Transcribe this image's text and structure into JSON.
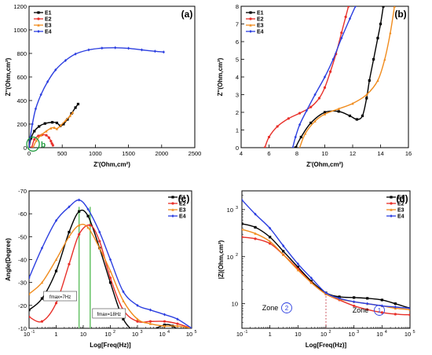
{
  "chart_data": [
    {
      "type": "line",
      "panel_label": "(a)",
      "xlabel": "Z'(Ohm,cm²)",
      "ylabel": "Z''(Ohm,cm²)",
      "xlim": [
        0,
        2500
      ],
      "ylim": [
        0,
        1200
      ],
      "xticks": [
        0,
        500,
        1000,
        1500,
        2000,
        2500
      ],
      "yticks": [
        0,
        200,
        400,
        600,
        800,
        1000,
        1200
      ],
      "legend_position": "top-left",
      "annotation": "b",
      "series": [
        {
          "name": "E1",
          "color": "#000000",
          "marker": "square",
          "x": [
            0,
            30,
            80,
            150,
            240,
            350,
            420,
            470,
            520,
            580,
            640,
            700,
            740
          ],
          "y": [
            0,
            80,
            140,
            180,
            205,
            215,
            210,
            185,
            200,
            240,
            290,
            340,
            370
          ]
        },
        {
          "name": "E2",
          "color": "#e8302a",
          "marker": "circle",
          "x": [
            40,
            80,
            140,
            200,
            260,
            300,
            330,
            345,
            360
          ],
          "y": [
            0,
            70,
            100,
            110,
            105,
            85,
            55,
            35,
            20
          ]
        },
        {
          "name": "E3",
          "color": "#f08c1e",
          "marker": "triangle",
          "x": [
            60,
            110,
            180,
            260,
            330,
            380,
            420,
            480,
            550,
            620,
            660
          ],
          "y": [
            0,
            60,
            105,
            140,
            165,
            170,
            160,
            190,
            230,
            270,
            300
          ]
        },
        {
          "name": "E4",
          "color": "#2c3fe0",
          "marker": "diamond",
          "x": [
            0,
            20,
            50,
            100,
            180,
            280,
            400,
            550,
            700,
            900,
            1100,
            1300,
            1500,
            1700,
            1900,
            2030
          ],
          "y": [
            0,
            90,
            200,
            330,
            450,
            560,
            660,
            740,
            795,
            830,
            845,
            848,
            843,
            830,
            818,
            812
          ]
        }
      ]
    },
    {
      "type": "line",
      "panel_label": "(b)",
      "xlabel": "Z'(Ohm,cm²)",
      "ylabel": "Z''(Ohm,cm²)",
      "xlim": [
        4,
        16
      ],
      "ylim": [
        0,
        8
      ],
      "xticks": [
        4,
        6,
        8,
        10,
        12,
        14,
        16
      ],
      "yticks": [
        0,
        1,
        2,
        3,
        4,
        5,
        6,
        7,
        8
      ],
      "legend_position": "top-left",
      "series": [
        {
          "name": "E1",
          "color": "#000000",
          "marker": "square",
          "x": [
            7.9,
            8.3,
            9.0,
            10.0,
            11.0,
            11.8,
            12.3,
            12.7,
            13.0,
            13.2,
            13.5,
            13.8,
            14.0,
            14.2
          ],
          "y": [
            0,
            0.6,
            1.4,
            2.0,
            2.05,
            1.8,
            1.6,
            1.8,
            2.8,
            3.8,
            5.0,
            6.2,
            7.0,
            8.0
          ]
        },
        {
          "name": "E2",
          "color": "#e8302a",
          "marker": "circle",
          "x": [
            5.7,
            6.0,
            6.6,
            7.4,
            8.2,
            9.0,
            9.6,
            10.0,
            10.4,
            10.8,
            11.2,
            11.5,
            11.7
          ],
          "y": [
            0,
            0.6,
            1.2,
            1.65,
            1.95,
            2.3,
            2.8,
            3.4,
            4.3,
            5.3,
            6.5,
            7.4,
            8.0
          ]
        },
        {
          "name": "E3",
          "color": "#f08c1e",
          "marker": "triangle",
          "x": [
            8.2,
            8.6,
            9.3,
            10.0,
            11.0,
            12.0,
            13.0,
            13.8,
            14.3,
            14.7,
            15.0
          ],
          "y": [
            0,
            0.8,
            1.5,
            1.9,
            2.2,
            2.5,
            3.0,
            3.8,
            5.0,
            6.5,
            8.0
          ]
        },
        {
          "name": "E4",
          "color": "#2c3fe0",
          "marker": "diamond",
          "x": [
            7.7,
            7.9,
            8.2,
            8.7,
            9.3,
            10.0,
            10.6,
            11.2,
            11.8,
            12.2
          ],
          "y": [
            0,
            0.6,
            1.3,
            2.1,
            3.0,
            4.0,
            5.0,
            6.2,
            7.3,
            8.0
          ]
        }
      ]
    },
    {
      "type": "line",
      "panel_label": "(c)",
      "xlabel": "Log[Freq(Hz)]",
      "ylabel": "Angle(Degree)",
      "x_scale": "log",
      "xlim": [
        0.1,
        100000
      ],
      "ylim": [
        -70,
        -10
      ],
      "y_reversed": true,
      "xticks": [
        0.1,
        1,
        10,
        100,
        1000,
        10000,
        100000
      ],
      "yticks": [
        -70,
        -60,
        -50,
        -40,
        -30,
        -20,
        -10
      ],
      "legend_position": "top-right",
      "annotations": [
        {
          "text": "fmax=7Hz",
          "x": 7
        },
        {
          "text": "fmax=18Hz",
          "x": 18
        }
      ],
      "series": [
        {
          "name": "E1",
          "color": "#000000",
          "marker": "square",
          "x": [
            0.1,
            0.3,
            1,
            3,
            7,
            15,
            40,
            100,
            300,
            1000,
            3000,
            10000,
            20000,
            50000,
            100000
          ],
          "y": [
            -18,
            -23,
            -35,
            -52,
            -61,
            -59,
            -45,
            -30,
            -14,
            -8,
            -9,
            -11.5,
            -11,
            -8,
            -10
          ]
        },
        {
          "name": "E2",
          "color": "#e8302a",
          "marker": "circle",
          "x": [
            0.1,
            0.3,
            1,
            3,
            7,
            18,
            40,
            100,
            300,
            1000,
            3000,
            10000,
            30000,
            100000
          ],
          "y": [
            -15,
            -13,
            -21,
            -38,
            -51,
            -55,
            -48,
            -32,
            -18,
            -13,
            -13,
            -13,
            -12,
            -10
          ]
        },
        {
          "name": "E3",
          "color": "#f08c1e",
          "marker": "triangle",
          "x": [
            0.1,
            0.3,
            1,
            3,
            7,
            15,
            40,
            100,
            300,
            1000,
            3000,
            10000,
            30000,
            100000
          ],
          "y": [
            -25,
            -30,
            -40,
            -50,
            -55,
            -54,
            -45,
            -35,
            -22,
            -14,
            -12,
            -11,
            -11,
            -10
          ]
        },
        {
          "name": "E4",
          "color": "#2c3fe0",
          "marker": "diamond",
          "x": [
            0.1,
            0.3,
            1,
            3,
            7,
            15,
            40,
            100,
            300,
            1000,
            3000,
            10000,
            30000,
            100000
          ],
          "y": [
            -32,
            -45,
            -57,
            -63,
            -66,
            -62,
            -52,
            -40,
            -26,
            -20,
            -18,
            -16,
            -14,
            -10
          ]
        }
      ]
    },
    {
      "type": "line",
      "panel_label": "(d)",
      "xlabel": "Log[Freq(Hz)]",
      "ylabel": "|Z|(Ohm,cm²)",
      "x_scale": "log",
      "y_scale": "log",
      "xlim": [
        0.1,
        100000
      ],
      "ylim": [
        3,
        2500
      ],
      "xticks": [
        0.1,
        1,
        10,
        100,
        1000,
        10000,
        100000
      ],
      "yticks": [
        10,
        100,
        1000
      ],
      "legend_position": "top-right",
      "annotations": [
        {
          "text": "Zone",
          "badge": "2"
        },
        {
          "text": "Zone",
          "badge": "1"
        }
      ],
      "reference_line_x": 100,
      "series": [
        {
          "name": "E1",
          "color": "#000000",
          "marker": "square",
          "x": [
            0.1,
            0.3,
            1,
            3,
            10,
            30,
            100,
            300,
            1000,
            3000,
            10000,
            30000,
            100000
          ],
          "y": [
            500,
            420,
            260,
            130,
            60,
            30,
            17,
            14,
            13.5,
            13,
            12,
            10,
            8
          ]
        },
        {
          "name": "E2",
          "color": "#e8302a",
          "marker": "circle",
          "x": [
            0.1,
            0.3,
            1,
            3,
            10,
            30,
            100,
            300,
            1000,
            3000,
            10000,
            30000,
            100000
          ],
          "y": [
            260,
            240,
            190,
            110,
            55,
            28,
            16,
            12,
            9,
            7.5,
            6.5,
            6,
            5.8
          ]
        },
        {
          "name": "E3",
          "color": "#f08c1e",
          "marker": "triangle",
          "x": [
            0.1,
            0.3,
            1,
            3,
            10,
            30,
            100,
            300,
            1000,
            3000,
            10000,
            30000,
            100000
          ],
          "y": [
            380,
            310,
            210,
            110,
            52,
            28,
            16,
            12.5,
            11,
            10,
            9,
            8,
            7.5
          ]
        },
        {
          "name": "E4",
          "color": "#2c3fe0",
          "marker": "diamond",
          "x": [
            0.1,
            0.3,
            1,
            3,
            10,
            30,
            100,
            300,
            1000,
            3000,
            10000,
            30000,
            100000
          ],
          "y": [
            1600,
            800,
            400,
            170,
            70,
            35,
            17,
            13,
            11,
            10,
            9,
            8.5,
            8
          ]
        }
      ]
    }
  ]
}
